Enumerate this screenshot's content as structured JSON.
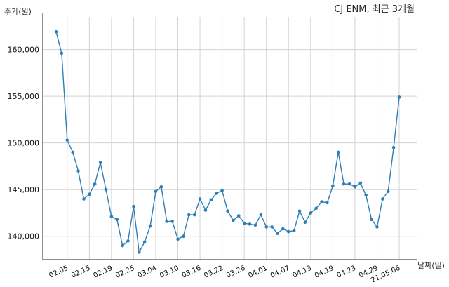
{
  "chart_data": {
    "type": "line",
    "title": "CJ ENM, 최근 3개월",
    "xlabel": "날짜(일)",
    "ylabel": "주가(원)",
    "ylim": [
      137500,
      163500
    ],
    "yticks": [
      140000,
      145000,
      150000,
      155000,
      160000
    ],
    "ytick_labels": [
      "140,000",
      "145,000",
      "150,000",
      "155,000",
      "160,000"
    ],
    "grid": true,
    "line_color": "#2d7fb8",
    "xtick_labels": [
      "02.05",
      "02.15",
      "02.19",
      "02.25",
      "03.04",
      "03.10",
      "03.16",
      "03.22",
      "03.26",
      "04.01",
      "04.07",
      "04.13",
      "04.19",
      "04.23",
      "04.29",
      "21.05.06"
    ],
    "xtick_index": [
      2,
      6,
      10,
      14,
      18,
      22,
      26,
      30,
      34,
      38,
      42,
      46,
      50,
      54,
      58,
      62
    ],
    "series": [
      {
        "values": [
          161900,
          159600,
          150300,
          149000,
          147000,
          144000,
          144500,
          145600,
          147900,
          145000,
          142100,
          141800,
          139000,
          139500,
          143200,
          138300,
          139400,
          141100,
          144800,
          145300,
          141600,
          141600,
          139700,
          140000,
          142300,
          142300,
          144000,
          142800,
          143900,
          144600,
          144900,
          142700,
          141700,
          142200,
          141400,
          141300,
          141200,
          142300,
          141000,
          141000,
          140300,
          140800,
          140500,
          140600,
          142700,
          141500,
          142500,
          143000,
          143700,
          143600,
          145400,
          149000,
          145600,
          145600,
          145300,
          145700,
          144400,
          141800,
          141000,
          144000,
          144800,
          149500,
          154900
        ]
      }
    ]
  }
}
